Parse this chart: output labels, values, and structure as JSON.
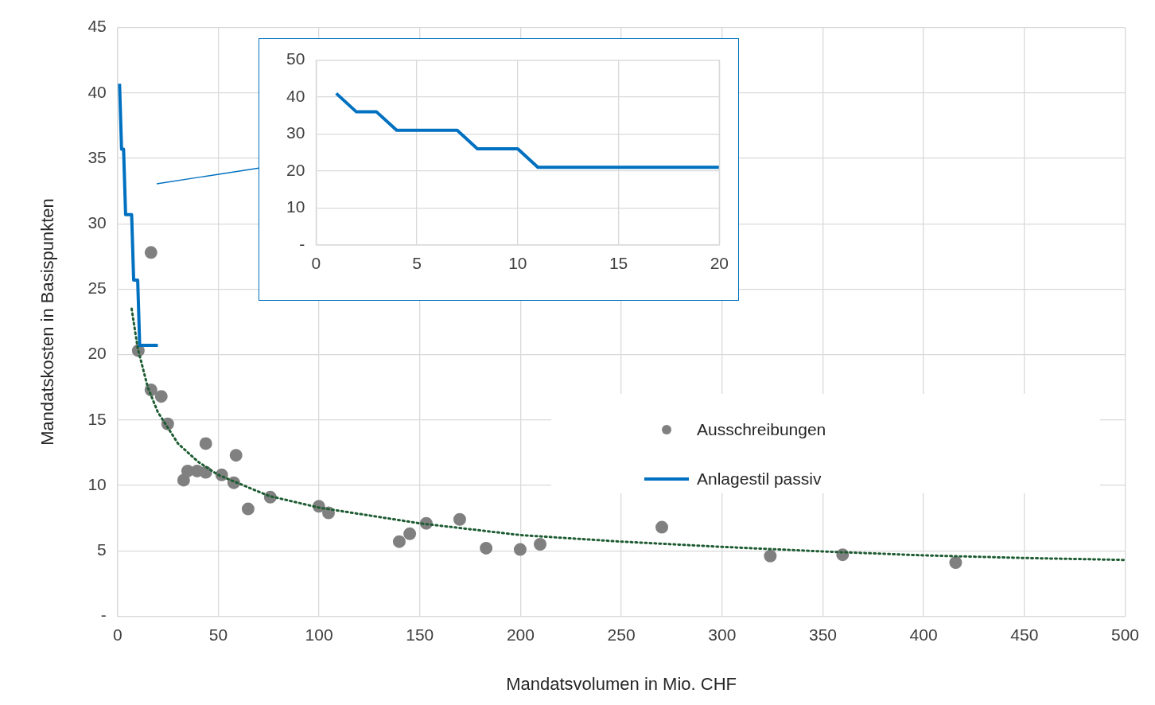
{
  "chart_data": [
    {
      "type": "scatter",
      "xlabel": "Mandatsvolumen in Mio. CHF",
      "ylabel": "Mandatskosten in Basispunkten",
      "xlim": [
        0,
        500
      ],
      "xticks": [
        0,
        50,
        100,
        150,
        200,
        250,
        300,
        350,
        400,
        450,
        500
      ],
      "ylim": [
        0,
        45
      ],
      "yticks": [
        {
          "value": 0,
          "label": "-"
        },
        5,
        10,
        15,
        20,
        25,
        30,
        35,
        40,
        45
      ],
      "grid": true,
      "legend": "right",
      "series": [
        {
          "name": "Ausschreibungen",
          "marker": "circle",
          "color": "#808080",
          "x": [
            10.3,
            16.6,
            16.6,
            21.7,
            24.9,
            32.4,
            32.8,
            34.8,
            39.5,
            43.8,
            43.8,
            51.7,
            57.7,
            58.8,
            64.8,
            75.8,
            99.9,
            104.7,
            139.8,
            145,
            153.2,
            169.8,
            182.9,
            199.8,
            209.7,
            270.1,
            323.9,
            359.8,
            415.9
          ],
          "values": [
            20.3,
            27.8,
            17.3,
            16.8,
            14.7,
            null,
            10.4,
            11.1,
            11.1,
            13.2,
            11.0,
            10.8,
            10.2,
            12.3,
            8.2,
            9.1,
            8.4,
            7.9,
            5.7,
            6.3,
            7.1,
            7.4,
            5.2,
            5.1,
            5.5,
            6.8,
            4.6,
            4.7,
            4.1
          ]
        },
        {
          "name": "Anlagestil passiv",
          "type": "line",
          "marker": "none",
          "color": "#0070c0",
          "x": [
            1,
            2,
            3,
            4,
            5,
            6,
            7,
            8,
            9,
            10,
            11,
            12,
            13,
            14,
            15,
            16,
            17,
            18,
            19,
            20
          ],
          "values": [
            40.7,
            35.7,
            35.7,
            30.7,
            30.7,
            30.7,
            30.7,
            25.7,
            25.7,
            25.7,
            20.7,
            20.7,
            20.7,
            20.7,
            20.7,
            20.7,
            20.7,
            20.7,
            20.7,
            20.7
          ]
        },
        {
          "type": "line",
          "marker": "none",
          "line_style": "dotted",
          "color": "#1e5c32",
          "x": [
            7,
            10,
            15,
            20,
            30,
            40,
            50,
            75,
            100,
            150,
            200,
            250,
            300,
            350,
            400,
            450,
            500
          ],
          "values": [
            23.5,
            20.5,
            17.5,
            15.6,
            13.2,
            11.8,
            10.8,
            9.2,
            8.3,
            7.1,
            6.2,
            5.7,
            5.3,
            4.95,
            4.65,
            4.45,
            4.3
          ]
        }
      ]
    },
    {
      "type": "line",
      "xlim": [
        0,
        20
      ],
      "xticks": [
        0,
        5,
        10,
        15,
        20
      ],
      "ylim": [
        0,
        50
      ],
      "yticks": [
        {
          "value": 0,
          "label": "-"
        },
        10,
        20,
        30,
        40,
        50
      ],
      "grid": true,
      "series": [
        {
          "marker": "none",
          "color": "#0070c0",
          "x": [
            1,
            2,
            3,
            4,
            5,
            6,
            7,
            8,
            9,
            10,
            11,
            12,
            13,
            14,
            15,
            16,
            17,
            18,
            19,
            20
          ],
          "values": [
            41,
            36,
            36,
            31,
            31,
            31,
            31,
            26,
            26,
            26,
            21,
            21,
            21,
            21,
            21,
            21,
            21,
            21,
            21,
            21
          ]
        }
      ]
    }
  ]
}
